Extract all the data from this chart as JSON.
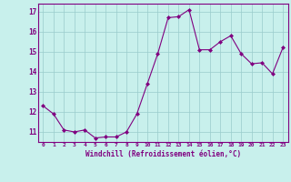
{
  "x": [
    0,
    1,
    2,
    3,
    4,
    5,
    6,
    7,
    8,
    9,
    10,
    11,
    12,
    13,
    14,
    15,
    16,
    17,
    18,
    19,
    20,
    21,
    22,
    23
  ],
  "y": [
    12.3,
    11.9,
    11.1,
    11.0,
    11.1,
    10.7,
    10.75,
    10.75,
    11.0,
    11.9,
    13.4,
    14.9,
    16.7,
    16.75,
    17.1,
    15.1,
    15.1,
    15.5,
    15.8,
    14.9,
    14.4,
    14.45,
    13.9,
    15.2
  ],
  "line_color": "#800080",
  "marker": "D",
  "marker_size": 2,
  "bg_color": "#c8f0ec",
  "grid_color": "#99cccc",
  "xlabel": "Windchill (Refroidissement éolien,°C)",
  "xlabel_color": "#800080",
  "ylabel_ticks": [
    11,
    12,
    13,
    14,
    15,
    16,
    17
  ],
  "ylim": [
    10.5,
    17.4
  ],
  "xlim": [
    -0.5,
    23.5
  ],
  "tick_color": "#800080",
  "tick_label_color": "#800080"
}
